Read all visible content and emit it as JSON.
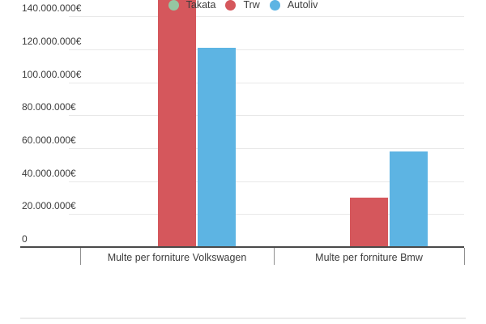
{
  "chart_data": {
    "type": "bar",
    "title": "",
    "categories": [
      "Multe per forniture Volkswagen",
      "Multe per forniture Bmw"
    ],
    "series": [
      {
        "name": "Takata",
        "color": "#95c5a1",
        "values": [
          0,
          0
        ]
      },
      {
        "name": "Trw",
        "color": "#d5575c",
        "values": [
          158000000,
          30000000
        ]
      },
      {
        "name": "Autoliv",
        "color": "#5db4e3",
        "values": [
          121000000,
          58000000
        ]
      }
    ],
    "y_axis": {
      "tick_interval": 20000000,
      "tick_labels": [
        "0",
        "20.000.000€",
        "40.000.000€",
        "60.000.000€",
        "80.000.000€",
        "100.000.000€",
        "120.000.000€",
        "140.000.000€"
      ],
      "visible_max": 150000000,
      "currency": "€"
    },
    "xlabel": "",
    "ylabel": "",
    "grid": true,
    "legend_position": "bottom",
    "notes": "Trw bar for Volkswagen is cut off at the top edge of the visible area"
  }
}
